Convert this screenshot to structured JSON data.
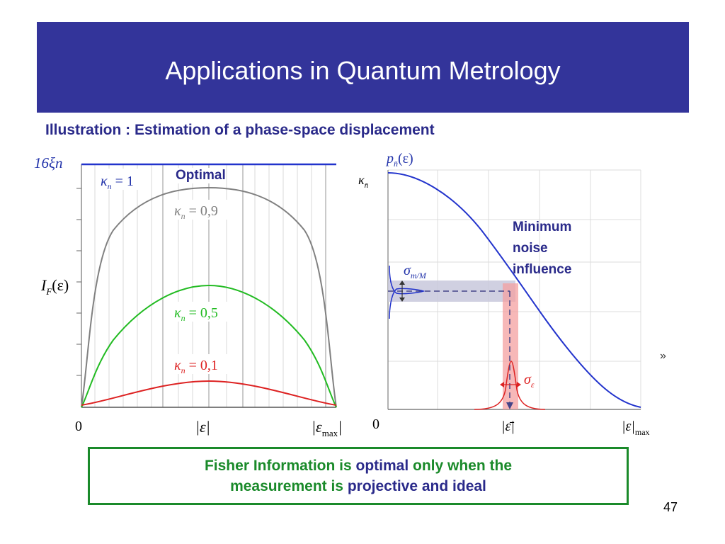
{
  "slide": {
    "title": "Applications in Quantum Metrology",
    "subtitle": "Illustration : Estimation of a phase-space displacement",
    "page_number": "47",
    "stray_mark": "»"
  },
  "left_plot": {
    "top_label": "16ξn",
    "y_label": "I",
    "y_label_sub": "F",
    "y_label_arg": "(ε)",
    "x_zero": "0",
    "x_mid": "|ε|",
    "x_max": "|ε",
    "x_max_sub": "max",
    "x_max_close": "|",
    "optimal_label": "Optimal",
    "curve_labels": [
      {
        "text": "κ",
        "sub": "n",
        "value": " = 1",
        "color": "#2233aa"
      },
      {
        "text": "κ",
        "sub": "n",
        "value": " = 0,9",
        "color": "#808080"
      },
      {
        "text": "κ",
        "sub": "n",
        "value": " = 0,5",
        "color": "#22bb22"
      },
      {
        "text": "κ",
        "sub": "n",
        "value": " = 0,1",
        "color": "#dd2222"
      }
    ]
  },
  "right_plot": {
    "top_label": "p",
    "top_label_sub": "n̄",
    "top_label_arg": "(ε)",
    "y_label": "κ",
    "y_label_sub": "n̄",
    "x_zero": "0",
    "x_mid": "|ε̄|",
    "x_max": "|ε|",
    "x_max_sub": "max",
    "sigma_m_label": "σ",
    "sigma_m_sub": "m/M",
    "sigma_e_label": "σ",
    "sigma_e_sub": "ε",
    "min_noise_lines": [
      "Minimum",
      "noise",
      "influence"
    ]
  },
  "callout": {
    "line1_a": "Fisher Information is ",
    "line1_b": "optimal",
    "line1_c": " only when the",
    "line2_a": "measurement is ",
    "line2_b": "projective and ideal"
  },
  "colors": {
    "title_bg": "#33349a",
    "navy_text": "#2a2a8a",
    "blue_curve": "#2233cc",
    "gray_curve": "#808080",
    "green_curve": "#22bb22",
    "red_curve": "#dd2222",
    "callout_green": "#1a8a2a",
    "band_gray": "#c8c8dc",
    "band_pink": "#f4a0a0"
  }
}
